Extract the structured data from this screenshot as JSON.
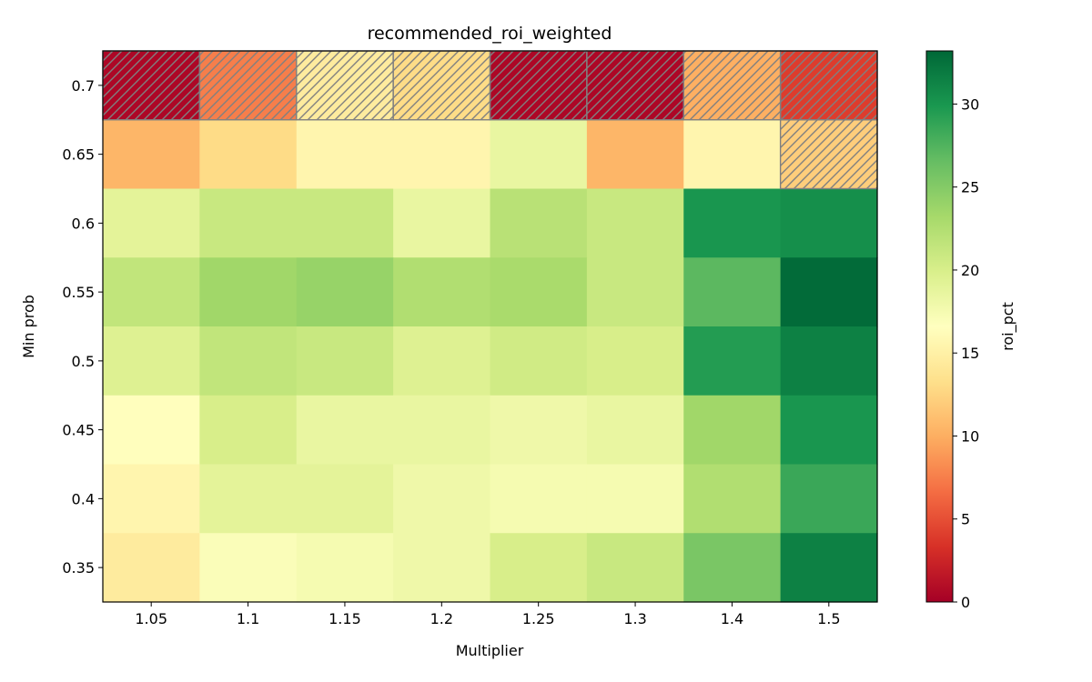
{
  "chart_data": {
    "type": "heatmap",
    "title": "recommended_roi_weighted",
    "xlabel": "Multiplier",
    "ylabel": "Min prob",
    "x_categories": [
      "1.05",
      "1.1",
      "1.15",
      "1.2",
      "1.25",
      "1.3",
      "1.4",
      "1.5"
    ],
    "y_categories": [
      "0.7",
      "0.65",
      "0.6",
      "0.55",
      "0.5",
      "0.45",
      "0.4",
      "0.35"
    ],
    "values": [
      [
        0.5,
        7.5,
        14.5,
        13.0,
        0.5,
        0.5,
        10.0,
        4.0
      ],
      [
        10.5,
        13.0,
        15.5,
        15.5,
        18.5,
        10.5,
        15.5,
        12.0
      ],
      [
        19.0,
        21.0,
        21.0,
        18.5,
        22.0,
        21.0,
        30.0,
        30.5
      ],
      [
        21.5,
        23.5,
        24.0,
        22.5,
        23.0,
        21.0,
        27.0,
        33.0
      ],
      [
        19.5,
        21.5,
        21.0,
        19.5,
        20.5,
        20.0,
        29.5,
        31.5
      ],
      [
        16.5,
        20.0,
        18.5,
        18.5,
        18.0,
        18.5,
        23.5,
        30.0
      ],
      [
        15.5,
        19.0,
        19.0,
        18.0,
        17.5,
        17.5,
        22.5,
        28.5
      ],
      [
        14.5,
        17.0,
        17.5,
        18.0,
        20.0,
        21.0,
        25.5,
        31.5
      ]
    ],
    "hatched_cells": [
      [
        0,
        0
      ],
      [
        0,
        1
      ],
      [
        0,
        2
      ],
      [
        0,
        3
      ],
      [
        0,
        4
      ],
      [
        0,
        5
      ],
      [
        0,
        6
      ],
      [
        0,
        7
      ],
      [
        1,
        7
      ]
    ],
    "colorbar": {
      "label": "roi_pct",
      "min": 0,
      "max": 33.2,
      "ticks": [
        "0",
        "5",
        "10",
        "15",
        "20",
        "25",
        "30"
      ],
      "colormap": "RdYlGn"
    },
    "grid": false,
    "legend": "none"
  }
}
